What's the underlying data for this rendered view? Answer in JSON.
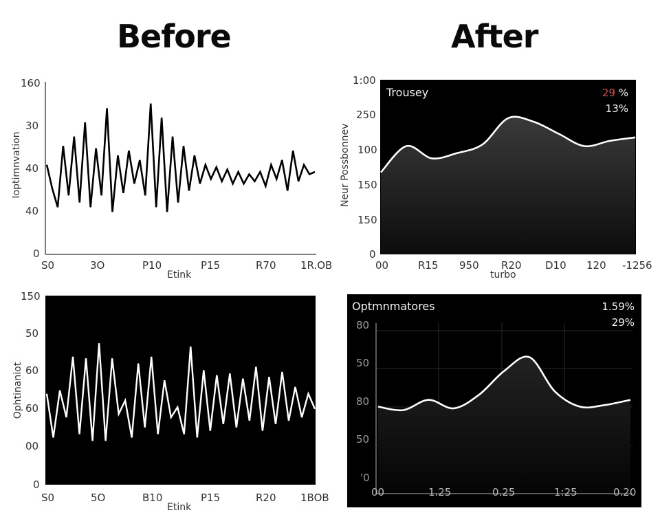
{
  "titles": {
    "before": "Before",
    "after": "After"
  },
  "chart_data": [
    {
      "id": "before_top",
      "type": "line",
      "title": "",
      "xlabel": "Etink",
      "ylabel": "Ioptimnvation",
      "x_ticks": [
        "S0",
        "3O",
        "P10",
        "P15",
        "R70",
        "1R.OB"
      ],
      "y_ticks": [
        "160",
        "30",
        "40",
        "40",
        "0"
      ],
      "theme": "light",
      "line_color": "#000000",
      "background": "#ffffff",
      "values": [
        38,
        28,
        20,
        46,
        25,
        50,
        22,
        56,
        20,
        45,
        25,
        62,
        18,
        42,
        26,
        44,
        30,
        40,
        25,
        64,
        20,
        58,
        18,
        50,
        22,
        46,
        27,
        42,
        30,
        38,
        32,
        37,
        31,
        36,
        30,
        35,
        30,
        34,
        31,
        35,
        29,
        38,
        32,
        40,
        27,
        44,
        31,
        38,
        34,
        35
      ]
    },
    {
      "id": "after_top",
      "type": "area",
      "title": "Trousey",
      "annotations": [
        "29 %",
        "13%"
      ],
      "annotation_colors": [
        "#e04848",
        "#f2f2f2"
      ],
      "xlabel": "turbo",
      "ylabel": "Neur Possbonnev",
      "x_ticks": [
        "00",
        "R15",
        "950",
        "R20",
        "D10",
        "120",
        "-1256"
      ],
      "y_ticks": [
        "1:00",
        "250",
        "100",
        "150",
        "150",
        "0"
      ],
      "theme": "dark",
      "line_color": "#ffffff",
      "background": "#000000",
      "values": [
        47,
        62,
        55,
        58,
        63,
        78,
        76,
        69,
        62,
        65,
        67
      ]
    },
    {
      "id": "before_bottom",
      "type": "line",
      "title": "",
      "xlabel": "Etink",
      "ylabel": "Ophtinaniot",
      "x_ticks": [
        "S0",
        "5O",
        "B10",
        "P15",
        "R20",
        "1BOB"
      ],
      "y_ticks": [
        "150",
        "50",
        "60",
        "60",
        "00",
        "0"
      ],
      "theme": "dark",
      "line_color": "#ffffff",
      "background": "#000000",
      "values": [
        54,
        28,
        56,
        40,
        76,
        30,
        75,
        26,
        84,
        26,
        75,
        42,
        50,
        28,
        72,
        34,
        76,
        30,
        62,
        40,
        46,
        30,
        82,
        28,
        68,
        32,
        65,
        36,
        66,
        34,
        63,
        38,
        70,
        32,
        64,
        36,
        67,
        38,
        58,
        40,
        54,
        45
      ]
    },
    {
      "id": "after_bottom",
      "type": "area",
      "title": "Optmnmatores",
      "annotations": [
        "1.59%",
        "29%"
      ],
      "annotation_colors": [
        "#f2f2f2",
        "#f2f2f2"
      ],
      "xlabel": "",
      "ylabel": "",
      "x_ticks": [
        "00",
        "1.25",
        "0.25",
        "1:25",
        "0.20"
      ],
      "y_ticks": [
        "80",
        "50",
        "80",
        "50",
        "'0"
      ],
      "grid": true,
      "theme": "dark",
      "line_color": "#ffffff",
      "background": "#000000",
      "values": [
        51,
        49,
        55,
        50,
        58,
        72,
        80,
        60,
        51,
        52,
        55
      ]
    }
  ]
}
